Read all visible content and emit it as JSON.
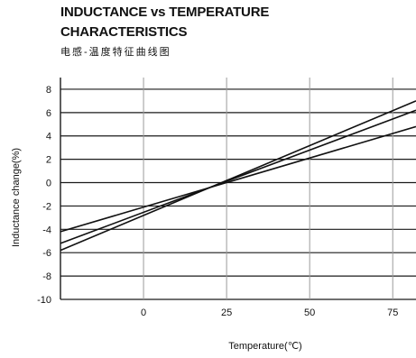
{
  "chart_data": {
    "type": "line",
    "title_line1": "INDUCTANCE vs TEMPERATURE",
    "title_line2": "CHARACTERISTICS",
    "subtitle": "电感-温度特征曲线图",
    "xlabel": "Temperature(℃)",
    "ylabel": "Inductance change(%)",
    "xlim": [
      -25,
      82
    ],
    "ylim": [
      -10,
      9
    ],
    "x_ticks": [
      0,
      25,
      50,
      75
    ],
    "y_ticks": [
      8,
      6,
      4,
      2,
      0,
      -2,
      -4,
      -6,
      -8,
      -10
    ],
    "grid": true,
    "series": [
      {
        "x": [
          -25,
          82
        ],
        "values": [
          -5.8,
          7.0
        ]
      },
      {
        "x": [
          -25,
          82
        ],
        "values": [
          -5.2,
          6.2
        ]
      },
      {
        "x": [
          -25,
          82
        ],
        "values": [
          -4.2,
          4.8
        ]
      }
    ]
  }
}
